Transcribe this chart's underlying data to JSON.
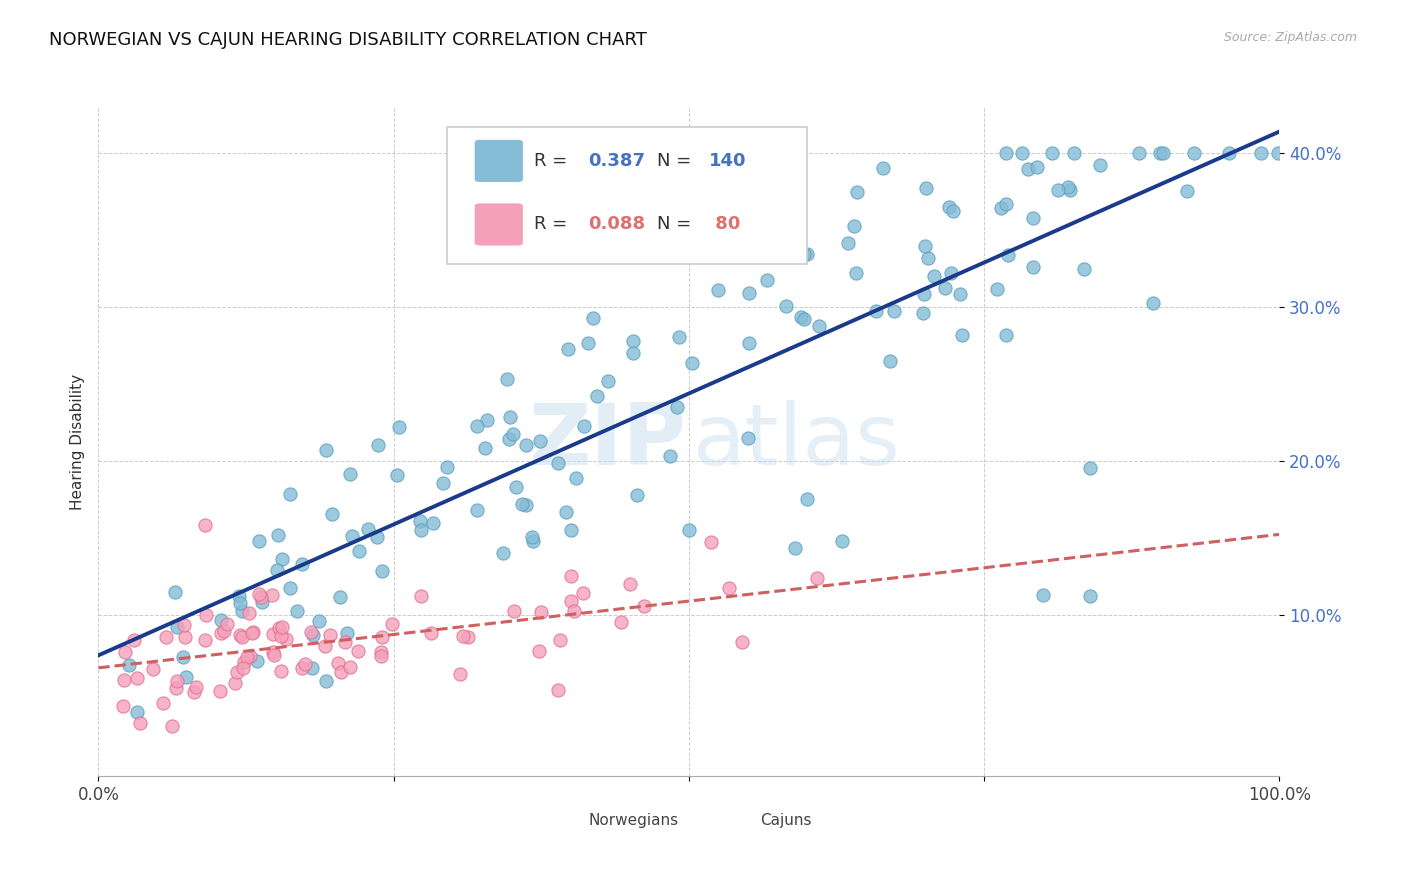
{
  "title": "NORWEGIAN VS CAJUN HEARING DISABILITY CORRELATION CHART",
  "source": "Source: ZipAtlas.com",
  "ylabel": "Hearing Disability",
  "watermark_zip": "ZIP",
  "watermark_atlas": "atlas",
  "norwegian_R": 0.387,
  "norwegian_N": 140,
  "cajun_R": 0.088,
  "cajun_N": 80,
  "xlim": [
    0.0,
    1.0
  ],
  "ylim": [
    -0.005,
    0.43
  ],
  "ytick_vals": [
    0.1,
    0.2,
    0.3,
    0.4
  ],
  "ytick_labels": [
    "10.0%",
    "20.0%",
    "30.0%",
    "40.0%"
  ],
  "norwegian_color": "#85bcd6",
  "norwegian_edge": "#5a9fc0",
  "cajun_color": "#f5a0ba",
  "cajun_edge": "#e07090",
  "trend_norwegian_color": "#1a3a8c",
  "trend_cajun_color": "#d06060",
  "background_color": "#ffffff",
  "title_fontsize": 13,
  "ylabel_fontsize": 11,
  "tick_color": "#4472C4",
  "grid_color": "#cccccc",
  "norwegian_outlier_x": [
    0.72,
    0.67,
    0.55,
    0.84,
    0.6,
    0.5,
    0.63,
    0.84,
    0.59,
    0.4,
    0.8
  ],
  "norwegian_outlier_y": [
    0.365,
    0.265,
    0.215,
    0.195,
    0.175,
    0.155,
    0.148,
    0.112,
    0.143,
    0.155,
    0.113
  ],
  "cajun_outlier_x": [
    0.09
  ],
  "cajun_outlier_y": [
    0.158
  ]
}
